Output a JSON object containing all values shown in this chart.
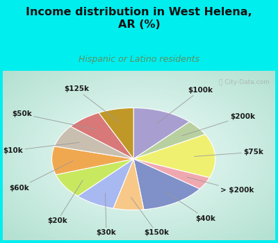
{
  "title": "Income distribution in West Helena,\nAR (%)",
  "subtitle": "Hispanic or Latino residents",
  "title_color": "#111111",
  "subtitle_color": "#5a9060",
  "bg_cyan": "#00eeee",
  "bg_chart_inner": "#f0faf8",
  "bg_chart_outer": "#b8e8d8",
  "watermark": "ⓘ City-Data.com",
  "labels": [
    "$100k",
    "$200k",
    "$75k",
    "> $200k",
    "$40k",
    "$150k",
    "$30k",
    "$20k",
    "$60k",
    "$10k",
    "$50k",
    "$125k"
  ],
  "values": [
    12,
    5,
    14,
    4,
    13,
    6,
    8,
    8,
    9,
    7,
    7,
    7
  ],
  "colors": [
    "#a89fd0",
    "#b8d0a0",
    "#f0f070",
    "#f0a8b0",
    "#8090c8",
    "#f8c888",
    "#a8b8f0",
    "#c8e860",
    "#f0a850",
    "#c8bfb0",
    "#d87878",
    "#c09828"
  ],
  "label_fontsize": 7.5,
  "figsize": [
    4.0,
    3.5
  ],
  "dpi": 100,
  "title_fontsize": 11.5,
  "subtitle_fontsize": 9
}
